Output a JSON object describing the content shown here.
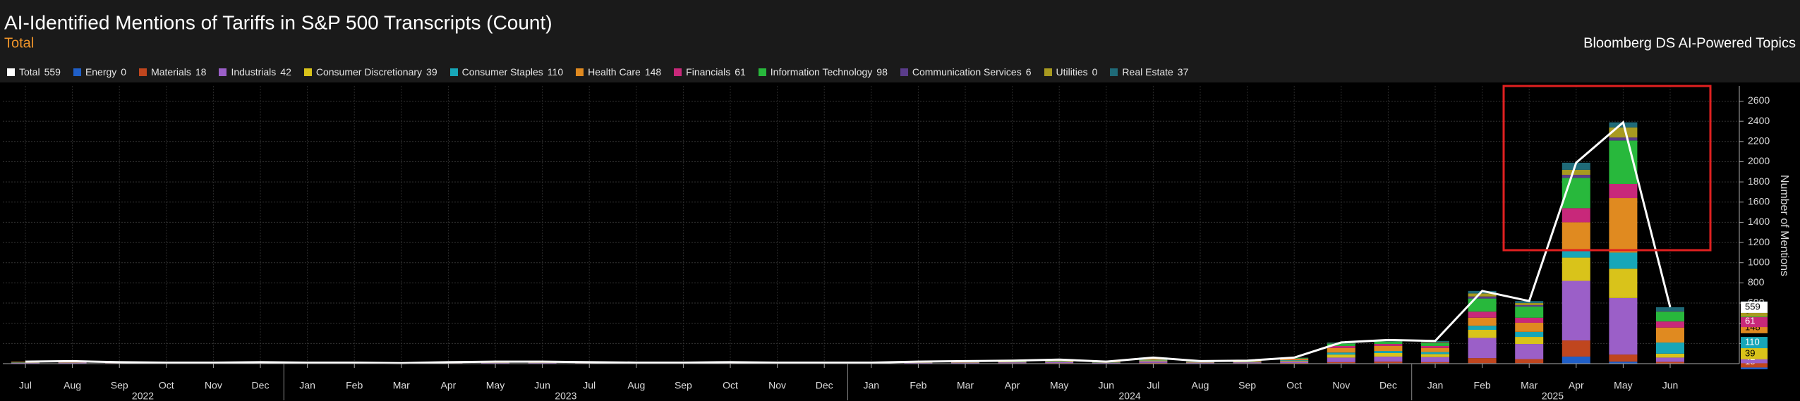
{
  "chart_data": {
    "type": "bar",
    "stacked": true,
    "title": "AI-Identified Mentions of Tariffs in S&P 500 Transcripts (Count)",
    "subtitle": "Total",
    "source": "Bloomberg DS AI-Powered Topics",
    "y_label": "Number of Mentions",
    "categories": [
      "Jul",
      "Aug",
      "Sep",
      "Oct",
      "Nov",
      "Dec",
      "Jan",
      "Feb",
      "Mar",
      "Apr",
      "May",
      "Jun",
      "Jul",
      "Aug",
      "Sep",
      "Oct",
      "Nov",
      "Dec",
      "Jan",
      "Feb",
      "Mar",
      "Apr",
      "May",
      "Jun",
      "Jul",
      "Aug",
      "Sep",
      "Oct",
      "Nov",
      "Dec",
      "Jan",
      "Feb",
      "Mar",
      "Apr",
      "May",
      "Jun"
    ],
    "category_years": [
      "2022",
      "2022",
      "2022",
      "2022",
      "2022",
      "2022",
      "2023",
      "2023",
      "2023",
      "2023",
      "2023",
      "2023",
      "2023",
      "2023",
      "2023",
      "2023",
      "2023",
      "2023",
      "2024",
      "2024",
      "2024",
      "2024",
      "2024",
      "2024",
      "2024",
      "2024",
      "2024",
      "2024",
      "2024",
      "2024",
      "2025",
      "2025",
      "2025",
      "2025",
      "2025",
      "2025"
    ],
    "ylim": [
      0,
      2750
    ],
    "yticks": [
      200,
      400,
      600,
      800,
      1000,
      1200,
      1400,
      1600,
      1800,
      2000,
      2200,
      2400,
      2600
    ],
    "grid": true,
    "total": {
      "name": "Total",
      "color": "#ffffff",
      "values": [
        20,
        25,
        15,
        10,
        10,
        15,
        10,
        10,
        5,
        15,
        20,
        20,
        15,
        10,
        10,
        15,
        10,
        10,
        10,
        20,
        25,
        30,
        40,
        20,
        60,
        25,
        30,
        60,
        210,
        235,
        225,
        720,
        620,
        1990,
        2390,
        559
      ]
    },
    "series": [
      {
        "name": "Energy",
        "color": "#1f5fc8",
        "values": [
          1,
          1,
          0,
          0,
          0,
          0,
          0,
          0,
          0,
          0,
          1,
          1,
          0,
          0,
          0,
          0,
          0,
          0,
          0,
          1,
          1,
          1,
          1,
          1,
          2,
          1,
          1,
          2,
          5,
          5,
          5,
          5,
          5,
          70,
          20,
          0
        ]
      },
      {
        "name": "Materials",
        "color": "#c0461e",
        "values": [
          3,
          3,
          2,
          1,
          1,
          2,
          1,
          1,
          1,
          2,
          3,
          3,
          2,
          1,
          1,
          2,
          1,
          1,
          1,
          3,
          3,
          4,
          5,
          3,
          6,
          3,
          4,
          5,
          10,
          15,
          10,
          50,
          40,
          160,
          70,
          18
        ]
      },
      {
        "name": "Industrials",
        "color": "#9b5fc8",
        "values": [
          5,
          7,
          4,
          3,
          3,
          4,
          3,
          3,
          1,
          4,
          5,
          5,
          4,
          3,
          3,
          4,
          3,
          3,
          3,
          5,
          7,
          8,
          11,
          5,
          16,
          7,
          8,
          15,
          45,
          50,
          50,
          200,
          150,
          590,
          560,
          42
        ]
      },
      {
        "name": "Consumer Discretionary",
        "color": "#d9c31a",
        "values": [
          3,
          4,
          3,
          2,
          2,
          3,
          2,
          2,
          1,
          3,
          3,
          3,
          3,
          2,
          2,
          3,
          2,
          2,
          2,
          3,
          4,
          5,
          7,
          3,
          8,
          4,
          5,
          8,
          30,
          35,
          30,
          80,
          70,
          230,
          290,
          39
        ]
      },
      {
        "name": "Consumer Staples",
        "color": "#17a6b8",
        "values": [
          2,
          3,
          2,
          1,
          1,
          2,
          1,
          1,
          1,
          2,
          2,
          2,
          2,
          1,
          1,
          2,
          1,
          1,
          1,
          2,
          3,
          3,
          4,
          2,
          6,
          3,
          3,
          5,
          20,
          20,
          20,
          40,
          50,
          80,
          160,
          110
        ]
      },
      {
        "name": "Health Care",
        "color": "#e08a20",
        "values": [
          4,
          4,
          3,
          2,
          2,
          3,
          2,
          2,
          1,
          3,
          4,
          4,
          3,
          2,
          2,
          3,
          2,
          2,
          2,
          4,
          4,
          5,
          7,
          4,
          12,
          4,
          5,
          10,
          45,
          50,
          40,
          80,
          90,
          270,
          540,
          148
        ]
      },
      {
        "name": "Financials",
        "color": "#c8287a",
        "values": [
          1,
          1,
          0,
          0,
          0,
          0,
          0,
          0,
          0,
          0,
          1,
          1,
          0,
          0,
          0,
          0,
          0,
          0,
          0,
          1,
          1,
          2,
          2,
          1,
          4,
          1,
          2,
          5,
          20,
          20,
          20,
          60,
          50,
          140,
          140,
          61
        ]
      },
      {
        "name": "Information Technology",
        "color": "#28b83c",
        "values": [
          1,
          2,
          1,
          1,
          1,
          1,
          1,
          1,
          0,
          1,
          1,
          1,
          1,
          1,
          1,
          1,
          1,
          1,
          1,
          1,
          2,
          2,
          3,
          1,
          5,
          2,
          2,
          7,
          25,
          25,
          30,
          130,
          110,
          300,
          430,
          98
        ]
      },
      {
        "name": "Communication Services",
        "color": "#5a3c8a",
        "values": [
          0,
          0,
          0,
          0,
          0,
          0,
          0,
          0,
          0,
          0,
          0,
          0,
          0,
          0,
          0,
          0,
          0,
          0,
          0,
          0,
          0,
          0,
          0,
          0,
          0,
          0,
          0,
          1,
          3,
          5,
          5,
          20,
          15,
          30,
          30,
          6
        ]
      },
      {
        "name": "Utilities",
        "color": "#a89a20",
        "values": [
          0,
          0,
          0,
          0,
          0,
          0,
          0,
          0,
          0,
          0,
          0,
          0,
          0,
          0,
          0,
          0,
          0,
          0,
          0,
          0,
          0,
          0,
          0,
          0,
          0,
          0,
          0,
          1,
          2,
          5,
          5,
          30,
          20,
          50,
          100,
          0
        ]
      },
      {
        "name": "Real Estate",
        "color": "#1f6a78",
        "values": [
          0,
          0,
          0,
          0,
          0,
          0,
          0,
          0,
          0,
          0,
          0,
          0,
          0,
          0,
          0,
          0,
          0,
          0,
          0,
          0,
          0,
          0,
          0,
          0,
          1,
          0,
          0,
          1,
          5,
          5,
          10,
          25,
          20,
          70,
          50,
          37
        ]
      }
    ]
  }
}
